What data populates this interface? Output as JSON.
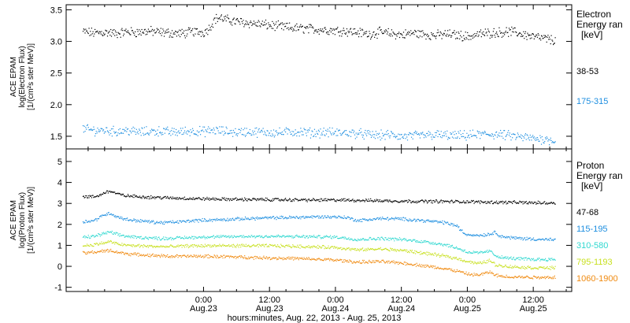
{
  "chart_data": [
    {
      "type": "scatter",
      "panel": "electron",
      "ylabel": [
        "ACE EPAM",
        "log(Electron Flux)",
        "[1/(cm²s ster MeV)]"
      ],
      "ylim": [
        1.3,
        3.58
      ],
      "yticks": [
        1.5,
        2.0,
        2.5,
        3.0,
        3.5
      ],
      "ytick_labels": [
        "1.5",
        "2.0",
        "2.5",
        "3.0",
        "3.5"
      ],
      "legend_title": [
        "Electron",
        "Energy ran",
        "[keV]"
      ],
      "series": [
        {
          "name": "38-53",
          "color": "#000000",
          "points": [
            [
              -22,
              3.16
            ],
            [
              -20,
              3.14
            ],
            [
              -18,
              3.15
            ],
            [
              -16,
              3.13
            ],
            [
              -14,
              3.16
            ],
            [
              -12,
              3.15
            ],
            [
              -10,
              3.17
            ],
            [
              -8,
              3.15
            ],
            [
              -6,
              3.14
            ],
            [
              -4,
              3.13
            ],
            [
              -2,
              3.16
            ],
            [
              0,
              3.15
            ],
            [
              1.0,
              3.22
            ],
            [
              2.0,
              3.36
            ],
            [
              3.0,
              3.38
            ],
            [
              4.0,
              3.35
            ],
            [
              6,
              3.32
            ],
            [
              8,
              3.3
            ],
            [
              10,
              3.28
            ],
            [
              12,
              3.26
            ],
            [
              14,
              3.24
            ],
            [
              16,
              3.22
            ],
            [
              18,
              3.21
            ],
            [
              20,
              3.2
            ],
            [
              22,
              3.19
            ],
            [
              24,
              3.18
            ],
            [
              26,
              3.17
            ],
            [
              28,
              3.15
            ],
            [
              30,
              3.12
            ],
            [
              32,
              3.15
            ],
            [
              34,
              3.13
            ],
            [
              36,
              3.11
            ],
            [
              38,
              3.14
            ],
            [
              40,
              3.12
            ],
            [
              42,
              3.1
            ],
            [
              44,
              3.12
            ],
            [
              46,
              3.11
            ],
            [
              48,
              3.08
            ],
            [
              50,
              3.12
            ],
            [
              52,
              3.14
            ],
            [
              54,
              3.15
            ],
            [
              56,
              3.16
            ],
            [
              58,
              3.12
            ],
            [
              60,
              3.08
            ],
            [
              62,
              3.05
            ],
            [
              64,
              3.02
            ]
          ]
        },
        {
          "name": "175-315",
          "color": "#1f8fe0",
          "points": [
            [
              -22,
              1.62
            ],
            [
              -20,
              1.6
            ],
            [
              -18,
              1.6
            ],
            [
              -16,
              1.58
            ],
            [
              -14,
              1.6
            ],
            [
              -12,
              1.57
            ],
            [
              -10,
              1.58
            ],
            [
              -8,
              1.59
            ],
            [
              -6,
              1.57
            ],
            [
              -4,
              1.58
            ],
            [
              -2,
              1.59
            ],
            [
              0,
              1.58
            ],
            [
              2,
              1.6
            ],
            [
              4,
              1.58
            ],
            [
              6,
              1.57
            ],
            [
              8,
              1.58
            ],
            [
              10,
              1.57
            ],
            [
              12,
              1.57
            ],
            [
              14,
              1.56
            ],
            [
              16,
              1.58
            ],
            [
              18,
              1.57
            ],
            [
              20,
              1.56
            ],
            [
              22,
              1.57
            ],
            [
              24,
              1.56
            ],
            [
              26,
              1.56
            ],
            [
              28,
              1.55
            ],
            [
              30,
              1.53
            ],
            [
              32,
              1.52
            ],
            [
              34,
              1.53
            ],
            [
              36,
              1.5
            ],
            [
              38,
              1.51
            ],
            [
              40,
              1.52
            ],
            [
              42,
              1.53
            ],
            [
              44,
              1.52
            ],
            [
              46,
              1.51
            ],
            [
              48,
              1.52
            ],
            [
              50,
              1.53
            ],
            [
              52,
              1.54
            ],
            [
              54,
              1.53
            ],
            [
              56,
              1.51
            ],
            [
              58,
              1.49
            ],
            [
              60,
              1.47
            ],
            [
              62,
              1.46
            ],
            [
              64,
              1.44
            ]
          ]
        }
      ]
    },
    {
      "type": "scatter",
      "panel": "proton",
      "xlabel": "hours:minutes, Aug. 22, 2013 - Aug. 25, 2013",
      "ylabel": [
        "ACE EPAM",
        "log(Proton Flux)",
        "[1/(cm²s ster MeV)]"
      ],
      "ylim": [
        -1.2,
        5.6
      ],
      "yticks": [
        -1,
        0,
        1,
        2,
        3,
        4,
        5
      ],
      "ytick_labels": [
        "-1",
        "0",
        "1",
        "2",
        "3",
        "4",
        "5"
      ],
      "xlim": [
        -25,
        67
      ],
      "xticks": [
        0,
        12,
        24,
        36,
        48,
        60
      ],
      "xtick_labels": [
        [
          "0:00",
          "Aug.23"
        ],
        [
          "12:00",
          "Aug.23"
        ],
        [
          "0:00",
          "Aug.24"
        ],
        [
          "12:00",
          "Aug.24"
        ],
        [
          "0:00",
          "Aug.25"
        ],
        [
          "12:00",
          "Aug.25"
        ]
      ],
      "legend_title": [
        "Proton",
        "Energy ran",
        "[keV]"
      ],
      "series": [
        {
          "name": "47-68",
          "color": "#000000",
          "points": [
            [
              -22,
              3.35
            ],
            [
              -20,
              3.33
            ],
            [
              -19,
              3.4
            ],
            [
              -18,
              3.55
            ],
            [
              -17,
              3.6
            ],
            [
              -16,
              3.5
            ],
            [
              -15,
              3.42
            ],
            [
              -14,
              3.38
            ],
            [
              -12,
              3.35
            ],
            [
              -10,
              3.32
            ],
            [
              -8,
              3.3
            ],
            [
              -6,
              3.28
            ],
            [
              -4,
              3.27
            ],
            [
              -2,
              3.25
            ],
            [
              0,
              3.24
            ],
            [
              4,
              3.22
            ],
            [
              8,
              3.21
            ],
            [
              12,
              3.2
            ],
            [
              16,
              3.19
            ],
            [
              20,
              3.18
            ],
            [
              24,
              3.18
            ],
            [
              28,
              3.17
            ],
            [
              32,
              3.15
            ],
            [
              36,
              3.13
            ],
            [
              40,
              3.12
            ],
            [
              44,
              3.11
            ],
            [
              48,
              3.1
            ],
            [
              52,
              3.08
            ],
            [
              56,
              3.07
            ],
            [
              60,
              3.05
            ],
            [
              64,
              3.04
            ]
          ]
        },
        {
          "name": "115-195",
          "color": "#1f8fe0",
          "points": [
            [
              -22,
              2.15
            ],
            [
              -20,
              2.2
            ],
            [
              -19,
              2.35
            ],
            [
              -18,
              2.5
            ],
            [
              -17,
              2.55
            ],
            [
              -16,
              2.4
            ],
            [
              -14,
              2.25
            ],
            [
              -12,
              2.2
            ],
            [
              -10,
              2.15
            ],
            [
              -8,
              2.1
            ],
            [
              -6,
              2.12
            ],
            [
              -4,
              2.15
            ],
            [
              -2,
              2.2
            ],
            [
              0,
              2.22
            ],
            [
              4,
              2.25
            ],
            [
              8,
              2.3
            ],
            [
              12,
              2.33
            ],
            [
              16,
              2.35
            ],
            [
              20,
              2.38
            ],
            [
              24,
              2.38
            ],
            [
              26,
              2.35
            ],
            [
              28,
              2.2
            ],
            [
              30,
              2.25
            ],
            [
              32,
              2.3
            ],
            [
              36,
              2.28
            ],
            [
              40,
              2.2
            ],
            [
              44,
              2.1
            ],
            [
              46,
              1.95
            ],
            [
              47.5,
              1.55
            ],
            [
              50,
              1.5
            ],
            [
              52,
              1.55
            ],
            [
              53,
              1.65
            ],
            [
              54,
              1.45
            ],
            [
              56,
              1.38
            ],
            [
              58,
              1.35
            ],
            [
              60,
              1.32
            ],
            [
              62,
              1.3
            ],
            [
              64,
              1.28
            ]
          ]
        },
        {
          "name": "310-580",
          "color": "#30d8d0",
          "points": [
            [
              -22,
              1.4
            ],
            [
              -20,
              1.45
            ],
            [
              -18,
              1.6
            ],
            [
              -17,
              1.65
            ],
            [
              -16,
              1.55
            ],
            [
              -14,
              1.45
            ],
            [
              -12,
              1.4
            ],
            [
              -10,
              1.38
            ],
            [
              -8,
              1.35
            ],
            [
              -6,
              1.36
            ],
            [
              -4,
              1.38
            ],
            [
              -2,
              1.4
            ],
            [
              0,
              1.42
            ],
            [
              4,
              1.43
            ],
            [
              8,
              1.45
            ],
            [
              12,
              1.45
            ],
            [
              16,
              1.44
            ],
            [
              20,
              1.43
            ],
            [
              24,
              1.42
            ],
            [
              28,
              1.3
            ],
            [
              32,
              1.35
            ],
            [
              36,
              1.3
            ],
            [
              40,
              1.2
            ],
            [
              44,
              1.05
            ],
            [
              46,
              0.9
            ],
            [
              48,
              0.7
            ],
            [
              50,
              0.65
            ],
            [
              52,
              0.75
            ],
            [
              53,
              0.55
            ],
            [
              54,
              0.45
            ],
            [
              56,
              0.4
            ],
            [
              60,
              0.35
            ],
            [
              64,
              0.35
            ]
          ]
        },
        {
          "name": "795-1193",
          "color": "#c8e020",
          "points": [
            [
              -22,
              1.0
            ],
            [
              -20,
              1.05
            ],
            [
              -18,
              1.15
            ],
            [
              -17,
              1.2
            ],
            [
              -16,
              1.1
            ],
            [
              -14,
              1.02
            ],
            [
              -12,
              1.0
            ],
            [
              -10,
              0.98
            ],
            [
              -8,
              0.96
            ],
            [
              -6,
              0.96
            ],
            [
              -4,
              0.98
            ],
            [
              -2,
              1.0
            ],
            [
              0,
              1.0
            ],
            [
              4,
              1.0
            ],
            [
              8,
              1.0
            ],
            [
              12,
              1.0
            ],
            [
              16,
              0.98
            ],
            [
              20,
              0.95
            ],
            [
              24,
              0.92
            ],
            [
              28,
              0.8
            ],
            [
              32,
              0.85
            ],
            [
              36,
              0.78
            ],
            [
              40,
              0.65
            ],
            [
              44,
              0.5
            ],
            [
              46,
              0.4
            ],
            [
              48,
              0.25
            ],
            [
              50,
              0.15
            ],
            [
              52,
              0.3
            ],
            [
              53,
              0.1
            ],
            [
              54,
              0.05
            ],
            [
              56,
              0.0
            ],
            [
              60,
              -0.05
            ],
            [
              64,
              -0.05
            ]
          ]
        },
        {
          "name": "1060-1900",
          "color": "#f08a10",
          "points": [
            [
              -22,
              0.65
            ],
            [
              -20,
              0.7
            ],
            [
              -18,
              0.75
            ],
            [
              -17,
              0.78
            ],
            [
              -16,
              0.7
            ],
            [
              -14,
              0.62
            ],
            [
              -12,
              0.58
            ],
            [
              -10,
              0.55
            ],
            [
              -8,
              0.52
            ],
            [
              -6,
              0.5
            ],
            [
              -4,
              0.5
            ],
            [
              -2,
              0.5
            ],
            [
              0,
              0.5
            ],
            [
              4,
              0.48
            ],
            [
              8,
              0.45
            ],
            [
              12,
              0.42
            ],
            [
              16,
              0.4
            ],
            [
              20,
              0.36
            ],
            [
              24,
              0.32
            ],
            [
              28,
              0.22
            ],
            [
              32,
              0.25
            ],
            [
              36,
              0.18
            ],
            [
              40,
              0.05
            ],
            [
              44,
              -0.1
            ],
            [
              46,
              -0.2
            ],
            [
              48,
              -0.35
            ],
            [
              50,
              -0.4
            ],
            [
              52,
              -0.25
            ],
            [
              53,
              -0.4
            ],
            [
              54,
              -0.45
            ],
            [
              56,
              -0.48
            ],
            [
              60,
              -0.5
            ],
            [
              64,
              -0.5
            ]
          ]
        }
      ]
    }
  ]
}
